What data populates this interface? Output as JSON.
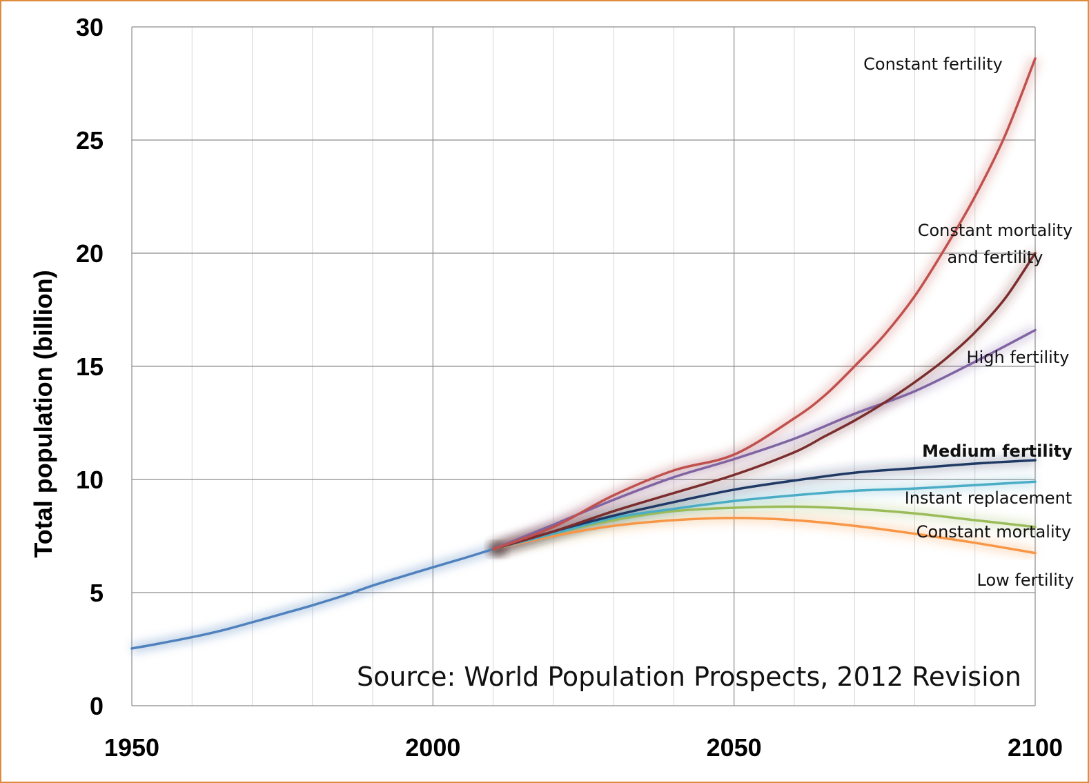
{
  "chart_data": {
    "type": "line",
    "ylabel": "Total population (billion)",
    "xlabel": "",
    "xlim": [
      1950,
      2100
    ],
    "ylim": [
      0,
      30
    ],
    "x_ticks": [
      1950,
      2000,
      2050,
      2100
    ],
    "y_ticks": [
      0,
      5,
      10,
      15,
      20,
      25,
      30
    ],
    "x_minor_step": 10,
    "grid": true,
    "annotation": "Source:  World Population Prospects, 2012 Revision",
    "historical": {
      "color": "#4f81bd",
      "points": [
        [
          1950,
          2.53
        ],
        [
          1955,
          2.77
        ],
        [
          1960,
          3.03
        ],
        [
          1965,
          3.33
        ],
        [
          1970,
          3.69
        ],
        [
          1975,
          4.06
        ],
        [
          1980,
          4.44
        ],
        [
          1985,
          4.85
        ],
        [
          1990,
          5.31
        ],
        [
          1995,
          5.72
        ],
        [
          2000,
          6.12
        ],
        [
          2005,
          6.51
        ],
        [
          2010,
          6.92
        ]
      ]
    },
    "series": [
      {
        "name": "Constant fertility",
        "color": "#c0504d",
        "label_lines": [
          "Constant fertility"
        ],
        "bold": false,
        "points": [
          [
            2010,
            6.92
          ],
          [
            2020,
            7.9
          ],
          [
            2030,
            9.3
          ],
          [
            2040,
            10.4
          ],
          [
            2050,
            11.1
          ],
          [
            2060,
            12.7
          ],
          [
            2065,
            13.7
          ],
          [
            2070,
            15.0
          ],
          [
            2075,
            16.4
          ],
          [
            2080,
            18.1
          ],
          [
            2085,
            20.2
          ],
          [
            2090,
            22.5
          ],
          [
            2095,
            25.2
          ],
          [
            2100,
            28.6
          ]
        ]
      },
      {
        "name": "Constant mortality and fertility",
        "color": "#7b2c2c",
        "label_lines": [
          "Constant mortality",
          "and fertility"
        ],
        "bold": false,
        "points": [
          [
            2010,
            6.92
          ],
          [
            2020,
            7.7
          ],
          [
            2030,
            8.6
          ],
          [
            2040,
            9.4
          ],
          [
            2050,
            10.2
          ],
          [
            2060,
            11.2
          ],
          [
            2065,
            11.9
          ],
          [
            2070,
            12.6
          ],
          [
            2075,
            13.4
          ],
          [
            2080,
            14.3
          ],
          [
            2085,
            15.3
          ],
          [
            2090,
            16.5
          ],
          [
            2095,
            18.0
          ],
          [
            2100,
            20.0
          ]
        ]
      },
      {
        "name": "High fertility",
        "color": "#8064a2",
        "label_lines": [
          "High fertility"
        ],
        "bold": false,
        "points": [
          [
            2010,
            6.92
          ],
          [
            2020,
            8.0
          ],
          [
            2030,
            9.1
          ],
          [
            2040,
            10.1
          ],
          [
            2050,
            10.9
          ],
          [
            2060,
            11.8
          ],
          [
            2070,
            12.9
          ],
          [
            2080,
            13.9
          ],
          [
            2090,
            15.2
          ],
          [
            2100,
            16.6
          ]
        ]
      },
      {
        "name": "Medium fertility",
        "color": "#1f3864",
        "label_lines": [
          "Medium fertility"
        ],
        "bold": true,
        "points": [
          [
            2010,
            6.92
          ],
          [
            2020,
            7.7
          ],
          [
            2030,
            8.4
          ],
          [
            2040,
            9.0
          ],
          [
            2050,
            9.55
          ],
          [
            2060,
            9.95
          ],
          [
            2070,
            10.3
          ],
          [
            2080,
            10.5
          ],
          [
            2090,
            10.7
          ],
          [
            2100,
            10.85
          ]
        ]
      },
      {
        "name": "Instant replacement",
        "color": "#4bacc6",
        "label_lines": [
          "Instant replacement"
        ],
        "bold": false,
        "points": [
          [
            2010,
            6.92
          ],
          [
            2020,
            7.6
          ],
          [
            2030,
            8.3
          ],
          [
            2040,
            8.7
          ],
          [
            2050,
            9.05
          ],
          [
            2060,
            9.3
          ],
          [
            2070,
            9.5
          ],
          [
            2080,
            9.6
          ],
          [
            2090,
            9.75
          ],
          [
            2100,
            9.9
          ]
        ]
      },
      {
        "name": "Constant mortality",
        "color": "#9bbb59",
        "label_lines": [
          "Constant mortality"
        ],
        "bold": false,
        "points": [
          [
            2010,
            6.92
          ],
          [
            2020,
            7.6
          ],
          [
            2030,
            8.2
          ],
          [
            2040,
            8.6
          ],
          [
            2050,
            8.75
          ],
          [
            2060,
            8.8
          ],
          [
            2070,
            8.7
          ],
          [
            2080,
            8.5
          ],
          [
            2090,
            8.2
          ],
          [
            2100,
            7.9
          ]
        ]
      },
      {
        "name": "Low fertility",
        "color": "#f79646",
        "label_lines": [
          "Low fertility"
        ],
        "bold": false,
        "points": [
          [
            2010,
            6.92
          ],
          [
            2020,
            7.5
          ],
          [
            2030,
            7.95
          ],
          [
            2040,
            8.2
          ],
          [
            2050,
            8.3
          ],
          [
            2060,
            8.2
          ],
          [
            2070,
            7.95
          ],
          [
            2080,
            7.6
          ],
          [
            2090,
            7.2
          ],
          [
            2100,
            6.75
          ]
        ]
      }
    ]
  }
}
